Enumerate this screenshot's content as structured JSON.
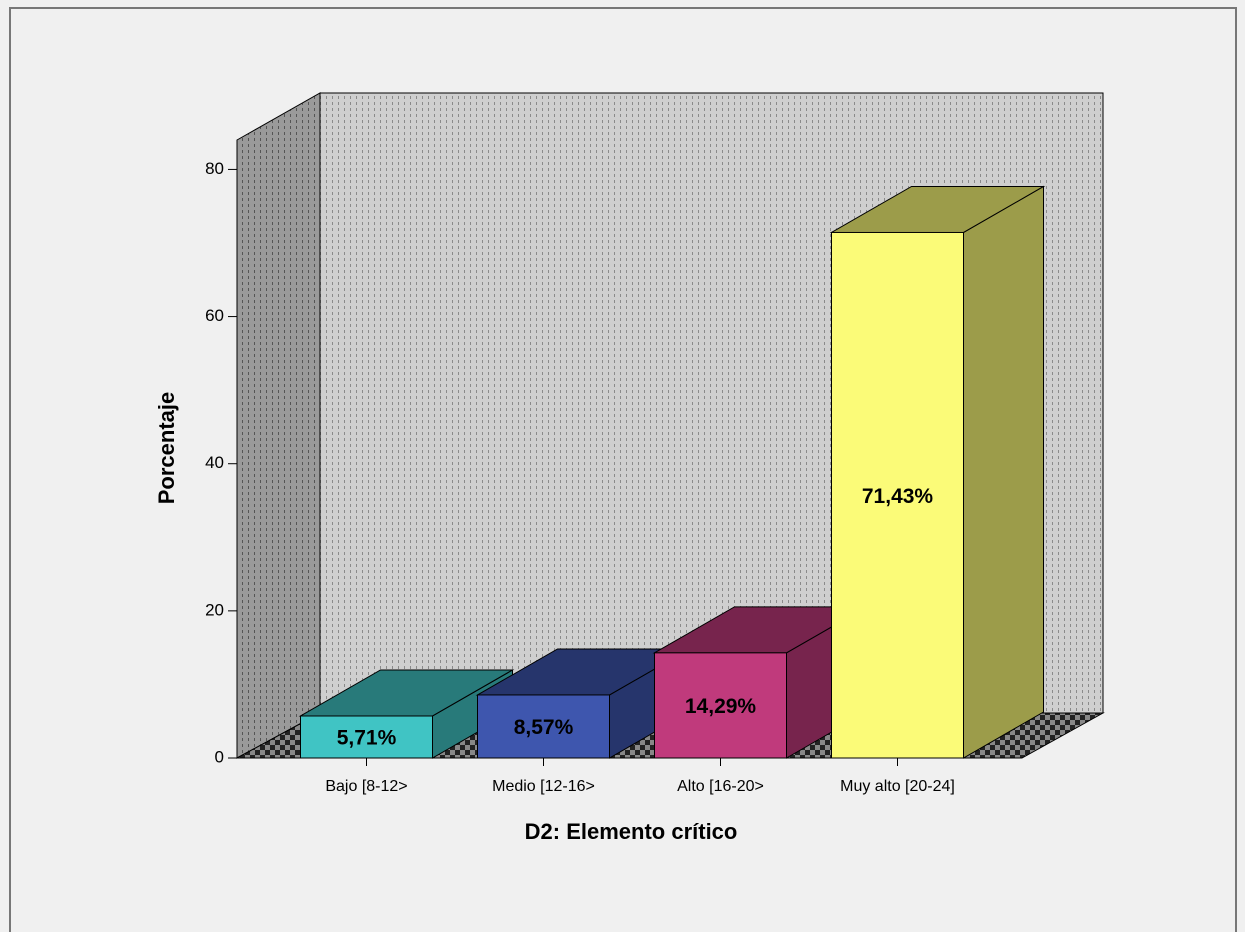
{
  "chart_data": {
    "type": "bar3d",
    "x_label": "D2: Elemento crítico",
    "y_label": "Porcentaje",
    "categories": [
      "Bajo [8-12>",
      "Medio [12-16>",
      "Alto [16-20>",
      "Muy alto [20-24]"
    ],
    "values": [
      5.71,
      8.57,
      14.29,
      71.43
    ],
    "value_labels": [
      "5,71%",
      "8,57%",
      "14,29%",
      "71,43%"
    ],
    "colors": [
      "#40c4c4",
      "#3e56ae",
      "#c03a7c",
      "#fbfb78"
    ],
    "ylim": [
      0,
      84
    ],
    "yticks": [
      0,
      20,
      40,
      60,
      80
    ]
  }
}
